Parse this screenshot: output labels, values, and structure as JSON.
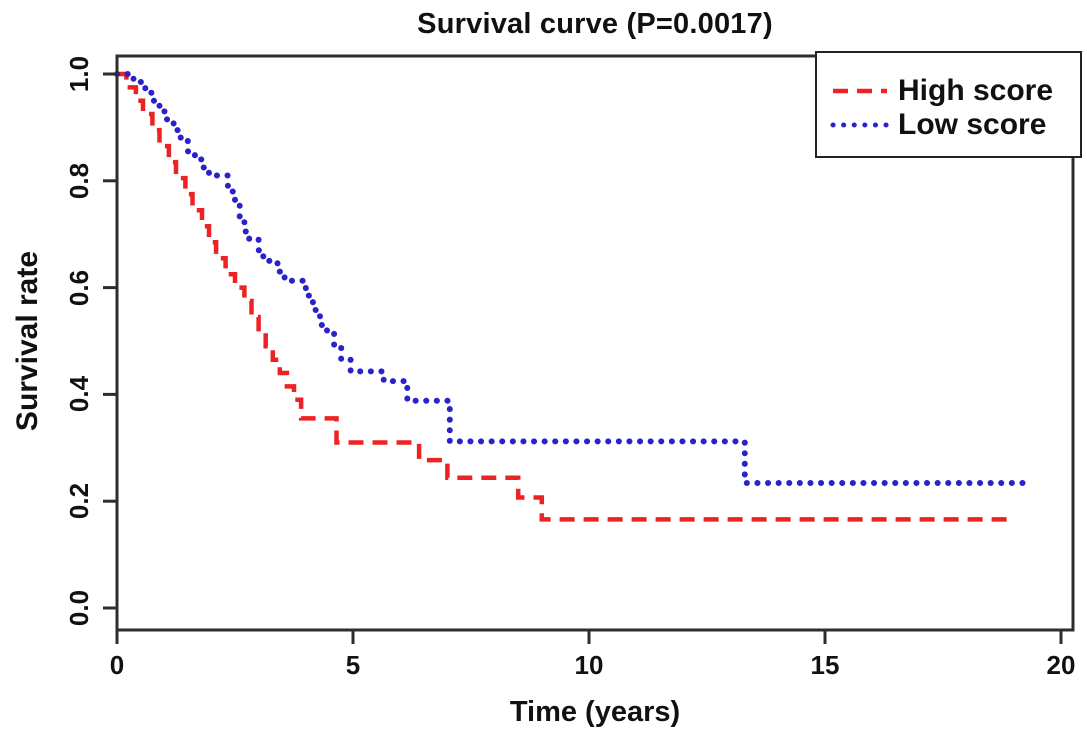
{
  "chart_data": {
    "type": "line",
    "subtype": "kaplan-meier-step",
    "title": "Survival curve (P=0.0017)",
    "p_value": "0.0017",
    "xlabel": "Time (years)",
    "ylabel": "Survival rate",
    "x_ticks": [
      "0",
      "5",
      "10",
      "15",
      "20"
    ],
    "x_tick_values": [
      0,
      5,
      10,
      15,
      20
    ],
    "y_ticks": [
      "0.0",
      "0.2",
      "0.4",
      "0.6",
      "0.8",
      "1.0"
    ],
    "y_tick_values": [
      0,
      0.2,
      0.4,
      0.6,
      0.8,
      1.0
    ],
    "xlim": [
      0,
      20.25
    ],
    "ylim": [
      -0.04,
      1.04
    ],
    "grid": false,
    "legend_position": "top-right",
    "series": [
      {
        "name": "High score",
        "color": "#ed2224",
        "line_style": "dashed",
        "end_time": 18.9,
        "points": [
          [
            0,
            1.0
          ],
          [
            0.2,
            0.975
          ],
          [
            0.4,
            0.95
          ],
          [
            0.55,
            0.925
          ],
          [
            0.75,
            0.895
          ],
          [
            0.9,
            0.865
          ],
          [
            1.1,
            0.835
          ],
          [
            1.25,
            0.805
          ],
          [
            1.45,
            0.775
          ],
          [
            1.6,
            0.745
          ],
          [
            1.8,
            0.715
          ],
          [
            1.95,
            0.685
          ],
          [
            2.1,
            0.655
          ],
          [
            2.3,
            0.625
          ],
          [
            2.5,
            0.6
          ],
          [
            2.7,
            0.575
          ],
          [
            2.85,
            0.545
          ],
          [
            3.0,
            0.515
          ],
          [
            3.15,
            0.49
          ],
          [
            3.3,
            0.465
          ],
          [
            3.45,
            0.44
          ],
          [
            3.6,
            0.415
          ],
          [
            3.75,
            0.39
          ],
          [
            3.9,
            0.355
          ],
          [
            4.65,
            0.31
          ],
          [
            6.4,
            0.277
          ],
          [
            7.0,
            0.244
          ],
          [
            8.5,
            0.207
          ],
          [
            9.0,
            0.166
          ]
        ]
      },
      {
        "name": "Low score",
        "color": "#2b22cc",
        "line_style": "dotted",
        "end_time": 19.4,
        "points": [
          [
            0,
            1.0
          ],
          [
            0.35,
            0.985
          ],
          [
            0.6,
            0.965
          ],
          [
            0.75,
            0.95
          ],
          [
            0.9,
            0.93
          ],
          [
            1.05,
            0.915
          ],
          [
            1.2,
            0.895
          ],
          [
            1.35,
            0.875
          ],
          [
            1.5,
            0.855
          ],
          [
            1.65,
            0.84
          ],
          [
            1.8,
            0.825
          ],
          [
            1.95,
            0.81
          ],
          [
            2.35,
            0.78
          ],
          [
            2.5,
            0.755
          ],
          [
            2.6,
            0.73
          ],
          [
            2.7,
            0.705
          ],
          [
            2.8,
            0.69
          ],
          [
            3.0,
            0.67
          ],
          [
            3.1,
            0.65
          ],
          [
            3.4,
            0.63
          ],
          [
            3.55,
            0.613
          ],
          [
            4.0,
            0.585
          ],
          [
            4.15,
            0.558
          ],
          [
            4.3,
            0.53
          ],
          [
            4.45,
            0.515
          ],
          [
            4.6,
            0.49
          ],
          [
            4.75,
            0.465
          ],
          [
            4.95,
            0.443
          ],
          [
            5.65,
            0.425
          ],
          [
            6.15,
            0.388
          ],
          [
            7.05,
            0.312
          ],
          [
            13.3,
            0.234
          ]
        ]
      }
    ]
  },
  "colors": {
    "high_score": "#ed2224",
    "low_score": "#2b22cc",
    "axis": "#2d2d2d",
    "text": "#111111",
    "legend_border": "#222222",
    "background": "#ffffff"
  }
}
